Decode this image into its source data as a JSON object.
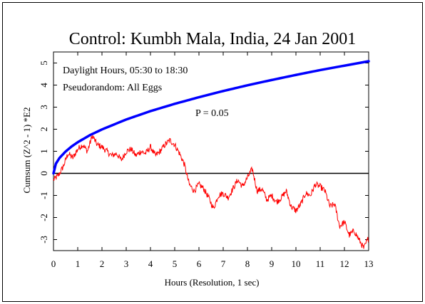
{
  "chart_data": {
    "type": "line",
    "title": "Control: Kumbh Mala, India, 24 Jan 2001",
    "xlabel": "Hours (Resolution, 1 sec)",
    "ylabel": "Cumsum (Z^2 - 1) *E2",
    "xlim": [
      0,
      13
    ],
    "ylim": [
      -3.5,
      5.5
    ],
    "xticks": [
      "0",
      "1",
      "2",
      "3",
      "4",
      "5",
      "6",
      "7",
      "8",
      "9",
      "10",
      "11",
      "12",
      "13"
    ],
    "yticks": [
      "-3",
      "-2",
      "-1",
      "0",
      "1",
      "2",
      "3",
      "4",
      "5"
    ],
    "annotations": {
      "line1": "Daylight Hours, 05:30 to 18:30",
      "line2": "Pseudorandom: All Eggs",
      "p_label": "P = 0.05"
    },
    "colors": {
      "data": "#ff0000",
      "envelope": "#0000ff",
      "baseline": "#000000",
      "annotation": "#cc0000"
    },
    "series": [
      {
        "name": "",
        "kind": "cumulative deviation",
        "x": [
          0,
          0.2,
          0.4,
          0.6,
          0.8,
          1.0,
          1.2,
          1.4,
          1.6,
          1.8,
          2.0,
          2.2,
          2.4,
          2.6,
          2.8,
          3.0,
          3.2,
          3.4,
          3.6,
          3.8,
          4.0,
          4.2,
          4.4,
          4.6,
          4.8,
          5.0,
          5.2,
          5.4,
          5.6,
          5.8,
          6.0,
          6.2,
          6.4,
          6.6,
          6.8,
          7.0,
          7.2,
          7.4,
          7.6,
          7.8,
          8.0,
          8.2,
          8.4,
          8.6,
          8.8,
          9.0,
          9.2,
          9.4,
          9.6,
          9.8,
          10.0,
          10.2,
          10.4,
          10.6,
          10.8,
          11.0,
          11.2,
          11.4,
          11.6,
          11.8,
          12.0,
          12.2,
          12.4,
          12.6,
          12.8,
          13.0
        ],
        "y": [
          -0.3,
          -0.1,
          0.3,
          0.9,
          0.7,
          1.1,
          1.3,
          1.0,
          1.7,
          1.3,
          1.2,
          1.0,
          0.8,
          0.9,
          0.6,
          1.0,
          1.1,
          0.8,
          1.0,
          0.9,
          1.2,
          0.8,
          1.0,
          1.3,
          1.5,
          1.3,
          0.9,
          0.4,
          -0.5,
          -0.8,
          -0.5,
          -0.7,
          -1.1,
          -1.6,
          -1.0,
          -0.9,
          -1.1,
          -0.7,
          -0.3,
          -0.6,
          -0.2,
          0.2,
          -0.8,
          -0.7,
          -1.2,
          -1.0,
          -1.3,
          -1.1,
          -0.8,
          -1.5,
          -1.7,
          -1.4,
          -0.9,
          -1.0,
          -0.5,
          -0.6,
          -0.8,
          -1.5,
          -1.4,
          -2.4,
          -2.2,
          -2.8,
          -2.6,
          -3.0,
          -3.4,
          -2.9
        ]
      },
      {
        "name": "P = 0.05",
        "kind": "probability envelope",
        "x": [
          0,
          0.1,
          0.25,
          0.5,
          0.75,
          1,
          1.5,
          2,
          3,
          4,
          5,
          6,
          7,
          8,
          9,
          10,
          11,
          12,
          13
        ],
        "y": [
          0,
          0.44,
          0.7,
          0.99,
          1.22,
          1.41,
          1.73,
          1.99,
          2.44,
          2.82,
          3.15,
          3.45,
          3.73,
          3.99,
          4.23,
          4.46,
          4.68,
          4.88,
          5.08
        ]
      }
    ]
  }
}
